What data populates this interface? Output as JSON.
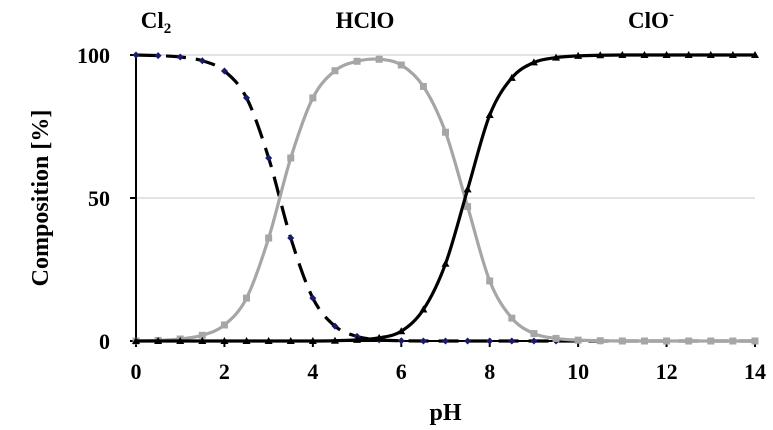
{
  "chart_data": {
    "type": "line",
    "xlabel": "pH",
    "ylabel": "Composition [%]",
    "xlim": [
      0,
      14
    ],
    "ylim": [
      0,
      100
    ],
    "x_ticks": [
      "0",
      "2",
      "4",
      "6",
      "8",
      "10",
      "12",
      "14"
    ],
    "y_ticks": [
      "0",
      "50",
      "100"
    ],
    "grid": "horizontal",
    "species_labels": [
      {
        "base": "Cl",
        "sub": "2",
        "sup": ""
      },
      {
        "base": "HClO",
        "sub": "",
        "sup": ""
      },
      {
        "base": "ClO",
        "sub": "",
        "sup": "-"
      }
    ],
    "x": [
      0,
      0.5,
      1,
      1.5,
      2,
      2.5,
      3,
      3.5,
      4,
      4.5,
      5,
      5.5,
      6,
      6.5,
      7,
      7.5,
      8,
      8.5,
      9,
      9.5,
      10,
      10.5,
      11,
      11.5,
      12,
      12.5,
      13,
      13.5,
      14
    ],
    "series": [
      {
        "color": "#000000",
        "dash": true,
        "marker": "diamond",
        "marker_color": "#1a1a6e",
        "values": [
          100,
          99.8,
          99.3,
          98,
          94.4,
          85,
          64,
          36,
          15,
          5.2,
          1.6,
          0.4,
          0.1,
          0,
          0,
          0,
          0,
          0,
          0,
          0,
          0,
          0,
          0,
          0,
          0,
          0,
          0,
          0,
          0
        ]
      },
      {
        "color": "#a6a6a6",
        "dash": false,
        "marker": "square",
        "marker_color": "#a6a6a6",
        "values": [
          0,
          0.2,
          0.7,
          2,
          5.6,
          15,
          36,
          64,
          85,
          94.5,
          97.8,
          98.5,
          96.5,
          89,
          73,
          47,
          21,
          8,
          2.6,
          0.9,
          0.3,
          0.1,
          0,
          0,
          0,
          0,
          0,
          0,
          0
        ]
      },
      {
        "color": "#000000",
        "dash": false,
        "marker": "triangle",
        "marker_color": "#000000",
        "values": [
          0,
          0,
          0,
          0,
          0,
          0,
          0,
          0,
          0,
          0.1,
          0.4,
          1.1,
          3.4,
          11,
          27,
          53,
          79,
          92,
          97.4,
          99.1,
          99.7,
          99.9,
          100,
          100,
          100,
          100,
          100,
          100,
          100
        ]
      }
    ]
  }
}
